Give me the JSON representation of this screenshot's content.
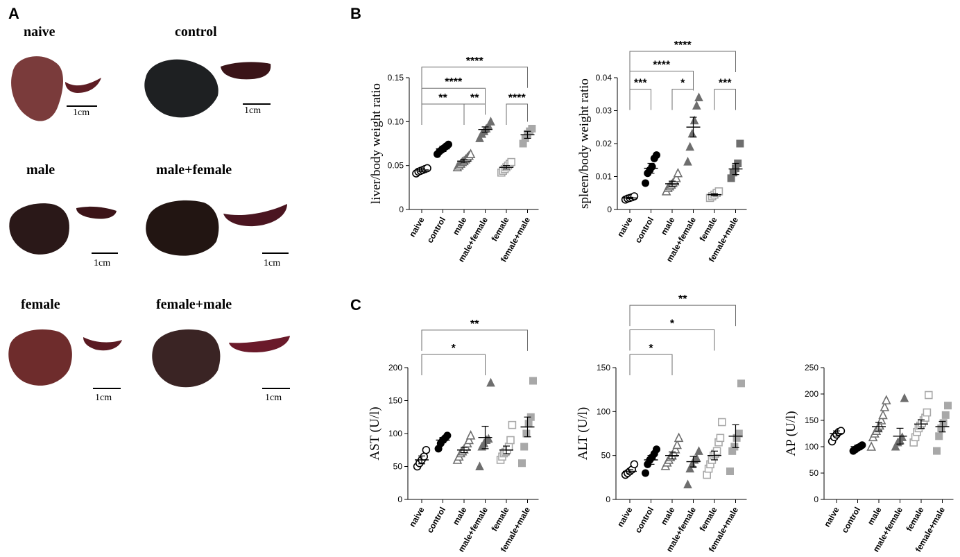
{
  "panels": {
    "a": "A",
    "b": "B",
    "c": "C"
  },
  "photos": [
    {
      "label": "naive",
      "scale": "1cm"
    },
    {
      "label": "control",
      "scale": "1cm"
    },
    {
      "label": "male",
      "scale": "1cm"
    },
    {
      "label": "male+female",
      "scale": "1cm"
    },
    {
      "label": "female",
      "scale": "1cm"
    },
    {
      "label": "female+male",
      "scale": "1cm"
    }
  ],
  "colors": {
    "black": "#000000",
    "gray": "#6e6e6e",
    "light": "#a8a8a8",
    "liver": "#6b2f2f",
    "spleen": "#5a1a22"
  },
  "chart_data": [
    {
      "id": "liver",
      "type": "scatter",
      "ylabel": "liver/body weight ratio",
      "ylim": [
        0,
        0.15
      ],
      "yticks": [
        0,
        0.05,
        0.1,
        0.15
      ],
      "ytick_labels": [
        "0",
        "0.05",
        "0.10",
        "0.15"
      ],
      "categories": [
        "naive",
        "control",
        "male",
        "male+female",
        "female",
        "female+male"
      ],
      "groups": [
        {
          "marker": "circle-open",
          "color": "#000000",
          "mean": 0.045,
          "sem": 0.002,
          "points": [
            0.041,
            0.043,
            0.044,
            0.045,
            0.046,
            0.047
          ]
        },
        {
          "marker": "circle",
          "color": "#000000",
          "mean": 0.069,
          "sem": 0.003,
          "points": [
            0.063,
            0.066,
            0.068,
            0.07,
            0.072,
            0.074
          ]
        },
        {
          "marker": "triangle-open",
          "color": "#6e6e6e",
          "mean": 0.055,
          "sem": 0.002,
          "points": [
            0.048,
            0.05,
            0.052,
            0.054,
            0.055,
            0.057,
            0.059,
            0.061,
            0.063
          ]
        },
        {
          "marker": "triangle",
          "color": "#6e6e6e",
          "mean": 0.091,
          "sem": 0.003,
          "points": [
            0.081,
            0.086,
            0.089,
            0.092,
            0.095,
            0.1
          ]
        },
        {
          "marker": "square-open",
          "color": "#a8a8a8",
          "mean": 0.048,
          "sem": 0.002,
          "points": [
            0.042,
            0.044,
            0.046,
            0.048,
            0.05,
            0.052,
            0.054
          ]
        },
        {
          "marker": "square",
          "color": "#a8a8a8",
          "mean": 0.085,
          "sem": 0.004,
          "points": [
            0.075,
            0.081,
            0.086,
            0.089,
            0.092
          ]
        }
      ],
      "significance": [
        {
          "from": 0,
          "to": 2,
          "label": "**",
          "y": 0.12
        },
        {
          "from": 2,
          "to": 3,
          "label": "**",
          "y": 0.12
        },
        {
          "from": 4,
          "to": 5,
          "label": "****",
          "y": 0.12
        },
        {
          "from": 0,
          "to": 3,
          "label": "****",
          "y": 0.138
        },
        {
          "from": 0,
          "to": 5,
          "label": "****",
          "y": 0.162
        }
      ]
    },
    {
      "id": "spleen",
      "type": "scatter",
      "ylabel": "spleen/body weight ratio",
      "ylim": [
        0,
        0.04
      ],
      "yticks": [
        0,
        0.01,
        0.02,
        0.03,
        0.04
      ],
      "ytick_labels": [
        "0",
        "0.01",
        "0.02",
        "0.03",
        "0.04"
      ],
      "categories": [
        "naive",
        "control",
        "male",
        "male+female",
        "female",
        "female+male"
      ],
      "groups": [
        {
          "marker": "circle-open",
          "color": "#000000",
          "mean": 0.0035,
          "sem": 0.0002,
          "points": [
            0.003,
            0.0033,
            0.0035,
            0.0037,
            0.004
          ]
        },
        {
          "marker": "circle",
          "color": "#000000",
          "mean": 0.0125,
          "sem": 0.0015,
          "points": [
            0.008,
            0.011,
            0.012,
            0.013,
            0.0155,
            0.0165
          ]
        },
        {
          "marker": "triangle-open",
          "color": "#6e6e6e",
          "mean": 0.0078,
          "sem": 0.0008,
          "points": [
            0.0055,
            0.0065,
            0.007,
            0.0075,
            0.008,
            0.0085,
            0.0095,
            0.011
          ]
        },
        {
          "marker": "triangle",
          "color": "#6e6e6e",
          "mean": 0.025,
          "sem": 0.003,
          "points": [
            0.0145,
            0.019,
            0.023,
            0.027,
            0.0315,
            0.034
          ]
        },
        {
          "marker": "square-open",
          "color": "#a8a8a8",
          "mean": 0.0045,
          "sem": 0.0003,
          "points": [
            0.0035,
            0.004,
            0.0045,
            0.005,
            0.0055
          ]
        },
        {
          "marker": "square",
          "color": "#6e6e6e",
          "mean": 0.0123,
          "sem": 0.0017,
          "points": [
            0.0095,
            0.0112,
            0.0125,
            0.014,
            0.02
          ]
        }
      ],
      "significance": [
        {
          "from": 0,
          "to": 1,
          "label": "***",
          "y": 0.0365
        },
        {
          "from": 2,
          "to": 3,
          "label": "*",
          "y": 0.0365
        },
        {
          "from": 4,
          "to": 5,
          "label": "***",
          "y": 0.0365
        },
        {
          "from": 0,
          "to": 3,
          "label": "****",
          "y": 0.042
        },
        {
          "from": 0,
          "to": 5,
          "label": "****",
          "y": 0.048
        }
      ]
    },
    {
      "id": "ast",
      "type": "scatter",
      "ylabel": "AST (U/l)",
      "ylim": [
        0,
        200
      ],
      "yticks": [
        0,
        50,
        100,
        150,
        200
      ],
      "ytick_labels": [
        "0",
        "50",
        "100",
        "150",
        "200"
      ],
      "categories": [
        "naive",
        "control",
        "male",
        "male+female",
        "female",
        "female+male"
      ],
      "groups": [
        {
          "marker": "circle-open",
          "color": "#000000",
          "mean": 60,
          "sem": 6,
          "points": [
            50,
            55,
            60,
            65,
            75
          ]
        },
        {
          "marker": "circle",
          "color": "#000000",
          "mean": 90,
          "sem": 4,
          "points": [
            77,
            85,
            90,
            93,
            97
          ]
        },
        {
          "marker": "triangle-open",
          "color": "#6e6e6e",
          "mean": 75,
          "sem": 4,
          "points": [
            60,
            65,
            70,
            73,
            76,
            80,
            85,
            90,
            97
          ]
        },
        {
          "marker": "triangle",
          "color": "#6e6e6e",
          "mean": 94,
          "sem": 17,
          "points": [
            50,
            80,
            85,
            90,
            92,
            177
          ]
        },
        {
          "marker": "square-open",
          "color": "#a8a8a8",
          "mean": 75,
          "sem": 6,
          "points": [
            60,
            65,
            70,
            72,
            75,
            80,
            90,
            113
          ]
        },
        {
          "marker": "square",
          "color": "#a8a8a8",
          "mean": 110,
          "sem": 15,
          "points": [
            55,
            80,
            100,
            115,
            125,
            180
          ]
        }
      ],
      "significance": [
        {
          "from": 0,
          "to": 3,
          "label": "*",
          "y": 220
        },
        {
          "from": 0,
          "to": 5,
          "label": "**",
          "y": 257
        }
      ]
    },
    {
      "id": "alt",
      "type": "scatter",
      "ylabel": "ALT (U/l)",
      "ylim": [
        0,
        150
      ],
      "yticks": [
        0,
        50,
        100,
        150
      ],
      "ytick_labels": [
        "0",
        "50",
        "100",
        "150"
      ],
      "categories": [
        "naive",
        "control",
        "male",
        "male+female",
        "female",
        "female+male"
      ],
      "groups": [
        {
          "marker": "circle-open",
          "color": "#000000",
          "mean": 32,
          "sem": 2,
          "points": [
            28,
            30,
            32,
            34,
            40
          ]
        },
        {
          "marker": "circle",
          "color": "#000000",
          "mean": 45,
          "sem": 5,
          "points": [
            30,
            40,
            45,
            48,
            52,
            57
          ]
        },
        {
          "marker": "triangle-open",
          "color": "#6e6e6e",
          "mean": 50,
          "sem": 4,
          "points": [
            38,
            42,
            45,
            48,
            50,
            53,
            57,
            62,
            70
          ]
        },
        {
          "marker": "triangle",
          "color": "#6e6e6e",
          "mean": 43,
          "sem": 6,
          "points": [
            17,
            35,
            40,
            45,
            47,
            55
          ]
        },
        {
          "marker": "square-open",
          "color": "#a8a8a8",
          "mean": 50,
          "sem": 5,
          "points": [
            28,
            35,
            40,
            45,
            50,
            52,
            55,
            65,
            70,
            88
          ]
        },
        {
          "marker": "square",
          "color": "#a8a8a8",
          "mean": 72,
          "sem": 13,
          "points": [
            32,
            55,
            60,
            70,
            75,
            132
          ]
        }
      ],
      "significance": [
        {
          "from": 0,
          "to": 2,
          "label": "*",
          "y": 165
        },
        {
          "from": 0,
          "to": 4,
          "label": "*",
          "y": 193
        },
        {
          "from": 0,
          "to": 5,
          "label": "**",
          "y": 221
        }
      ]
    },
    {
      "id": "ap",
      "type": "scatter",
      "ylabel": "AP (U/l)",
      "ylim": [
        0,
        250
      ],
      "yticks": [
        0,
        50,
        100,
        150,
        200,
        250
      ],
      "ytick_labels": [
        "0",
        "50",
        "100",
        "150",
        "200",
        "250"
      ],
      "categories": [
        "naive",
        "control",
        "male",
        "male+female",
        "female",
        "female+male"
      ],
      "groups": [
        {
          "marker": "circle-open",
          "color": "#000000",
          "mean": 125,
          "sem": 5,
          "points": [
            110,
            118,
            123,
            128,
            130
          ]
        },
        {
          "marker": "circle",
          "color": "#000000",
          "mean": 100,
          "sem": 3,
          "points": [
            92,
            95,
            98,
            100,
            103
          ]
        },
        {
          "marker": "triangle-open",
          "color": "#6e6e6e",
          "mean": 138,
          "sem": 8,
          "points": [
            100,
            118,
            125,
            130,
            135,
            140,
            150,
            160,
            175,
            188
          ]
        },
        {
          "marker": "triangle",
          "color": "#6e6e6e",
          "mean": 120,
          "sem": 15,
          "points": [
            100,
            108,
            112,
            118,
            192
          ]
        },
        {
          "marker": "square-open",
          "color": "#a8a8a8",
          "mean": 143,
          "sem": 8,
          "points": [
            108,
            118,
            128,
            135,
            140,
            145,
            150,
            155,
            165,
            198
          ]
        },
        {
          "marker": "square",
          "color": "#a8a8a8",
          "mean": 138,
          "sem": 10,
          "points": [
            92,
            120,
            135,
            145,
            160,
            178
          ]
        }
      ],
      "significance": []
    }
  ]
}
